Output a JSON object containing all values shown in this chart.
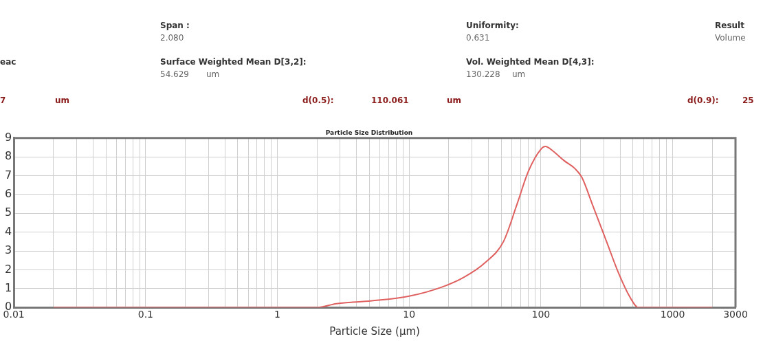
{
  "chart_data": {
    "type": "line",
    "title": "Particle Size Distribution",
    "xlabel": "Particle Size (μm)",
    "annotations": [
      "Span :",
      "2.080",
      "Uniformity:",
      "0.631",
      "Result",
      "Volume",
      "eac",
      "Surface Weighted Mean D[3,2]:",
      "54.629",
      "um",
      "Vol. Weighted Mean D[4,3]:",
      "130.228",
      "um",
      "7",
      "um",
      "d(0.5):",
      "110.061",
      "um",
      "d(0.9):",
      "25"
    ],
    "x": [
      0.02,
      0.05,
      0.1,
      0.5,
      1,
      2,
      2.8,
      5.2,
      10,
      18,
      26,
      38,
      52,
      66,
      80,
      100,
      108,
      124,
      150,
      180,
      205,
      245,
      315,
      390,
      470,
      550,
      1000,
      2000
    ],
    "series": [
      {
        "color": "#e06060",
        "values": [
          0,
          0,
          0,
          0,
          0,
          0,
          0.2,
          0.35,
          0.6,
          1.1,
          1.6,
          2.4,
          3.5,
          5.5,
          7.2,
          8.4,
          8.55,
          8.3,
          7.8,
          7.4,
          6.9,
          5.5,
          3.5,
          1.8,
          0.6,
          0,
          0,
          0
        ]
      }
    ],
    "log": "x",
    "xlim": [
      0.01,
      3000
    ],
    "xticks": [
      0.01,
      {
        "value": 0.02,
        "label": null
      },
      {
        "value": 0.03,
        "label": null
      },
      {
        "value": 0.04,
        "label": null
      },
      {
        "value": 0.05,
        "label": null
      },
      {
        "value": 0.06,
        "label": null
      },
      {
        "value": 0.07,
        "label": null
      },
      {
        "value": 0.08,
        "label": null
      },
      {
        "value": 0.09,
        "label": null
      },
      0.1,
      {
        "value": 0.2,
        "label": null
      },
      {
        "value": 0.3,
        "label": null
      },
      {
        "value": 0.4,
        "label": null
      },
      {
        "value": 0.5,
        "label": null
      },
      {
        "value": 0.6,
        "label": null
      },
      {
        "value": 0.7,
        "label": null
      },
      {
        "value": 0.8,
        "label": null
      },
      {
        "value": 0.9,
        "label": null
      },
      1,
      {
        "value": 2,
        "label": null
      },
      {
        "value": 3,
        "label": null
      },
      {
        "value": 4,
        "label": null
      },
      {
        "value": 5,
        "label": null
      },
      {
        "value": 6,
        "label": null
      },
      {
        "value": 7,
        "label": null
      },
      {
        "value": 8,
        "label": null
      },
      {
        "value": 9,
        "label": null
      },
      10,
      {
        "value": 20,
        "label": null
      },
      {
        "value": 30,
        "label": null
      },
      {
        "value": 40,
        "label": null
      },
      {
        "value": 50,
        "label": null
      },
      {
        "value": 60,
        "label": null
      },
      {
        "value": 70,
        "label": null
      },
      {
        "value": 80,
        "label": null
      },
      {
        "value": 90,
        "label": null
      },
      100,
      {
        "value": 200,
        "label": null
      },
      {
        "value": 300,
        "label": null
      },
      {
        "value": 400,
        "label": null
      },
      {
        "value": 500,
        "label": null
      },
      {
        "value": 600,
        "label": null
      },
      {
        "value": 700,
        "label": null
      },
      {
        "value": 800,
        "label": null
      },
      {
        "value": 900,
        "label": null
      },
      1000,
      {
        "value": 2000,
        "label": null
      },
      3000
    ],
    "ylim": [
      0,
      9
    ],
    "yticks": [
      0,
      1,
      2,
      3,
      4,
      5,
      6,
      7,
      8,
      9
    ],
    "grid": true,
    "marker": "none",
    "line_style": "solid"
  }
}
